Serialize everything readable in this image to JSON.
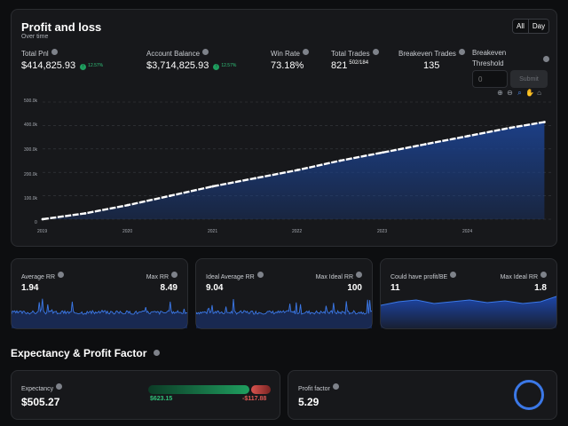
{
  "pnl": {
    "title": "Profit and loss",
    "subtitle": "Over time",
    "range_buttons": [
      "All",
      "Day"
    ],
    "stats": {
      "total_pnl_label": "Total Pnl",
      "total_pnl_value": "$414,825.93",
      "total_pnl_change": "12.57%",
      "account_balance_label": "Account Balance",
      "account_balance_value": "$3,714,825.93",
      "account_balance_change": "12.57%",
      "win_rate_label": "Win Rate",
      "win_rate_value": "73.18%",
      "total_trades_label": "Total Trades",
      "total_trades_value": "821",
      "total_trades_ratio": "502/184",
      "breakeven_trades_label": "Breakeven Trades",
      "breakeven_trades_value": "135",
      "breakeven_threshold_label_1": "Breakeven",
      "breakeven_threshold_label_2": "Threshold",
      "breakeven_threshold_placeholder": "0",
      "submit_label": "Submit"
    },
    "toolbar_icons": [
      "zoom-in-icon",
      "zoom-out-icon",
      "zoom-select-icon",
      "pan-hand-icon",
      "home-icon"
    ]
  },
  "chart_data": {
    "type": "area",
    "x": [
      2019.0,
      2019.5,
      2020.0,
      2020.5,
      2021.0,
      2021.5,
      2022.0,
      2022.5,
      2023.0,
      2023.5,
      2024.0,
      2024.5,
      2024.9
    ],
    "series": [
      {
        "values": [
          0,
          25000,
          60000,
          100000,
          140000,
          175000,
          210000,
          250000,
          285000,
          320000,
          355000,
          390000,
          414826
        ]
      }
    ],
    "ylim": [
      0,
      500000
    ],
    "y_ticks": [
      "500.0k",
      "400.0k",
      "300.0k",
      "200.0k",
      "100.0k",
      "0"
    ],
    "x_ticks": [
      "2019",
      "2020",
      "2021",
      "2022",
      "2023",
      "2024"
    ],
    "line_color": "#ffffff",
    "fill_color": "#1c3f86",
    "grid": true
  },
  "rr_cards": [
    {
      "left_label": "Average RR",
      "left_value": "1.94",
      "right_label": "Max RR",
      "right_value": "8.49"
    },
    {
      "left_label": "Ideal Average RR",
      "left_value": "9.04",
      "right_label": "Max Ideal RR",
      "right_value": "100"
    },
    {
      "left_label": "Could have profit/BE",
      "left_value": "11",
      "right_label": "Max Ideal RR",
      "right_value": "1.8"
    }
  ],
  "expectancy": {
    "section_title": "Expectancy & Profit Factor",
    "expectancy_label": "Expectancy",
    "expectancy_value": "$505.27",
    "win_amount": "$623.15",
    "loss_amount": "-$117.88",
    "win_color": "#1f9e5f",
    "loss_color": "#d9534f",
    "profit_factor_label": "Profit factor",
    "profit_factor_value": "5.29",
    "ring_color": "#3b78e7"
  }
}
